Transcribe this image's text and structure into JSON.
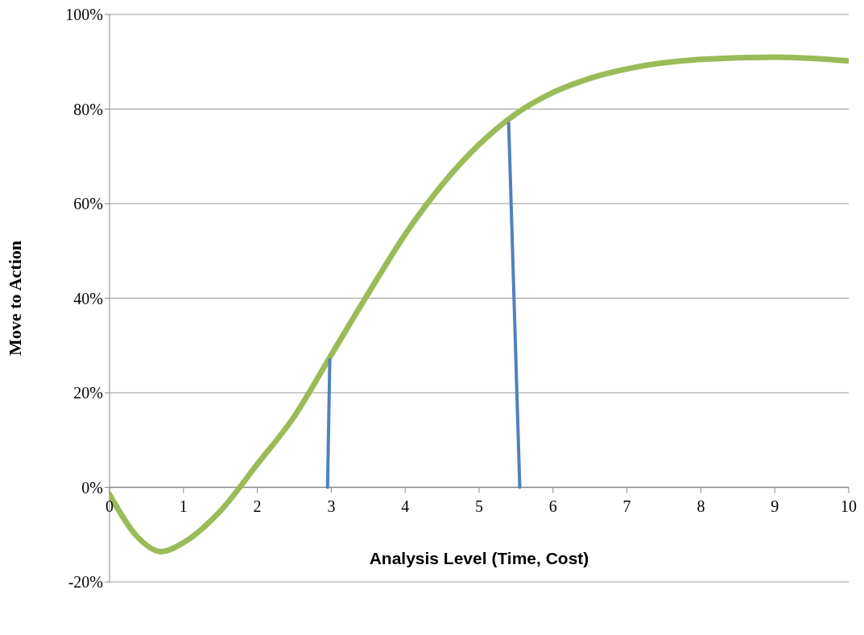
{
  "chart_data": {
    "type": "line",
    "xlabel": "Analysis Level (Time, Cost)",
    "ylabel": "Move to Action",
    "xlim": [
      0,
      10
    ],
    "xticks": [
      0,
      1,
      2,
      3,
      4,
      5,
      6,
      7,
      8,
      9,
      10
    ],
    "ylim": [
      -20,
      100
    ],
    "yticks": [
      {
        "value": -20,
        "label": "-20%"
      },
      {
        "value": 0,
        "label": "0%"
      },
      {
        "value": 20,
        "label": "20%"
      },
      {
        "value": 40,
        "label": "40%"
      },
      {
        "value": 60,
        "label": "60%"
      },
      {
        "value": 80,
        "label": "80%"
      },
      {
        "value": 100,
        "label": "100%"
      }
    ],
    "grid": "y",
    "marker": "none",
    "line_style": "solid",
    "series": [
      {
        "color": "#9bbb59",
        "x": [
          0,
          0.35,
          0.7,
          1,
          1.5,
          2,
          2.5,
          3,
          3.5,
          4,
          4.5,
          5,
          5.5,
          6,
          6.5,
          7,
          8,
          9,
          10
        ],
        "values": [
          -1.5,
          -10,
          -13.6,
          -11.7,
          -5,
          4.9,
          15,
          28,
          41,
          53.5,
          64,
          72.5,
          79,
          83.5,
          86.5,
          88.5,
          90.5,
          91,
          90.2
        ]
      },
      {
        "color": "#4f81bd",
        "x": [
          2.95,
          2.98
        ],
        "values": [
          0,
          27
        ]
      },
      {
        "color": "#4f81bd",
        "x": [
          5.55,
          5.4
        ],
        "values": [
          0,
          77
        ]
      }
    ]
  }
}
